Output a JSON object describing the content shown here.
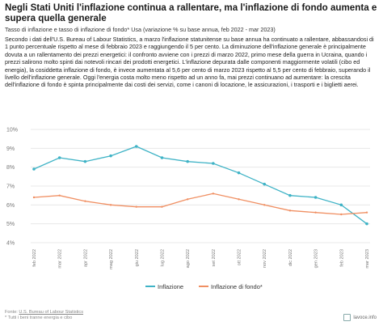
{
  "header": {
    "title": "Negli Stati Uniti l'inflazione continua a rallentare, ma l'inflazione di fondo aumenta e supera quella generale",
    "subtitle": "Tasso di inflazione e tasso di inflazione di fondo* Usa (variazione % su base annua, feb 2022 - mar 2023)",
    "description": "Secondo i dati dell'U.S. Bureau of Labour Statistics, a marzo l'inflazione statunitense su base annua ha continuato a rallentare, abbassandosi di 1 punto percentuale rispetto al mese di febbraio 2023 e raggiungendo il 5 per cento. La diminuzione dell'inflazione generale è principalmente dovuta a un rallentamento dei prezzi energetici: il confronto avviene con i prezzi di marzo 2022, primo mese della guerra in Ucraina, quando i prezzi salirono molto spinti dai notevoli rincari dei prodotti energetici. L'inflazione depurata dalle componenti maggiormente volatili (cibo ed energia), la cosiddetta inflazione di fondo, è invece aumentata al 5,6 per cento di marzo 2023 rispetto al 5,5 per cento di febbraio, superando il livello dell'inflazione generale. Oggi l'energia costa molto meno rispetto ad un anno fa, mai prezzi continuano ad aumentare: la crescita dell'inflazione di fondo è spinta principalmente dai costi dei servizi, come i canoni di locazione, le assicurazioni, i trasporti e i biglietti aerei."
  },
  "footer": {
    "source_prefix": "Fonte: ",
    "source_link": "U.S. Bureau of Labour Statistics",
    "note": "* Tutti i beni tranne energia e cibo",
    "brand": "lavoce.info"
  },
  "colors": {
    "inflazione": "#3fb3c6",
    "inflazione_di_fondo": "#f08f62",
    "grid": "#e3e3e3",
    "tick": "#777777"
  },
  "chart_data": {
    "type": "line",
    "x": [
      "feb 2022",
      "mar 2022",
      "apr 2022",
      "mag 2022",
      "giu 2022",
      "lug 2022",
      "ago 2022",
      "set 2022",
      "ott 2022",
      "nov 2022",
      "dic 2022",
      "gen 2023",
      "feb 2023",
      "mar 2023"
    ],
    "series": [
      {
        "name": "Inflazione",
        "values": [
          7.9,
          8.5,
          8.3,
          8.6,
          9.1,
          8.5,
          8.3,
          8.2,
          7.7,
          7.1,
          6.5,
          6.4,
          6.0,
          5.0
        ]
      },
      {
        "name": "Inflazione di fondo*",
        "values": [
          6.4,
          6.5,
          6.2,
          6.0,
          5.9,
          5.9,
          6.3,
          6.6,
          6.3,
          6.0,
          5.7,
          5.6,
          5.5,
          5.6
        ]
      }
    ],
    "yticks": [
      "4%",
      "5%",
      "6%",
      "7%",
      "8%",
      "9%",
      "10%"
    ],
    "ylim": [
      4,
      10
    ],
    "grid": true,
    "legend": "bottom-center"
  }
}
